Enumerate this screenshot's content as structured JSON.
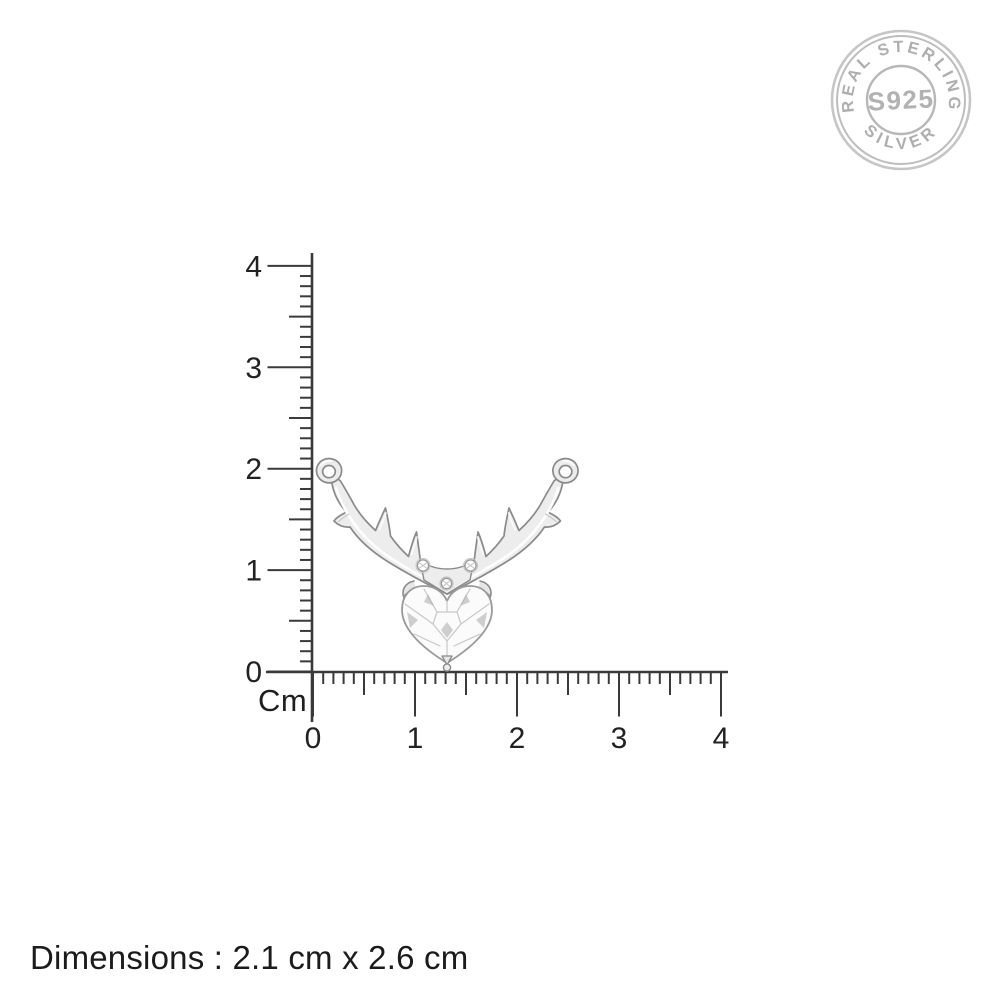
{
  "badge": {
    "arc_top": "REAL STERLING",
    "center": "S925",
    "arc_bottom": "SILVER",
    "color": "#aeaeae",
    "ring_color": "#bfbfbf"
  },
  "ruler": {
    "unit": "Cm",
    "vertical_labels_ascending": [
      "0",
      "1",
      "2",
      "3",
      "4"
    ],
    "horizontal_labels_ascending": [
      "0",
      "1",
      "2",
      "3",
      "4"
    ],
    "line_color": "#3a3a3a",
    "label_color": "#222222"
  },
  "product": {
    "illustration": "deer-antler-heart-pendant",
    "silver_outline_color": "#8a8a8a",
    "silver_fill_color": "#ededed"
  },
  "caption": {
    "dimensions": "Dimensions : 2.1 cm x 2.6 cm",
    "color": "#1b1b1b"
  }
}
